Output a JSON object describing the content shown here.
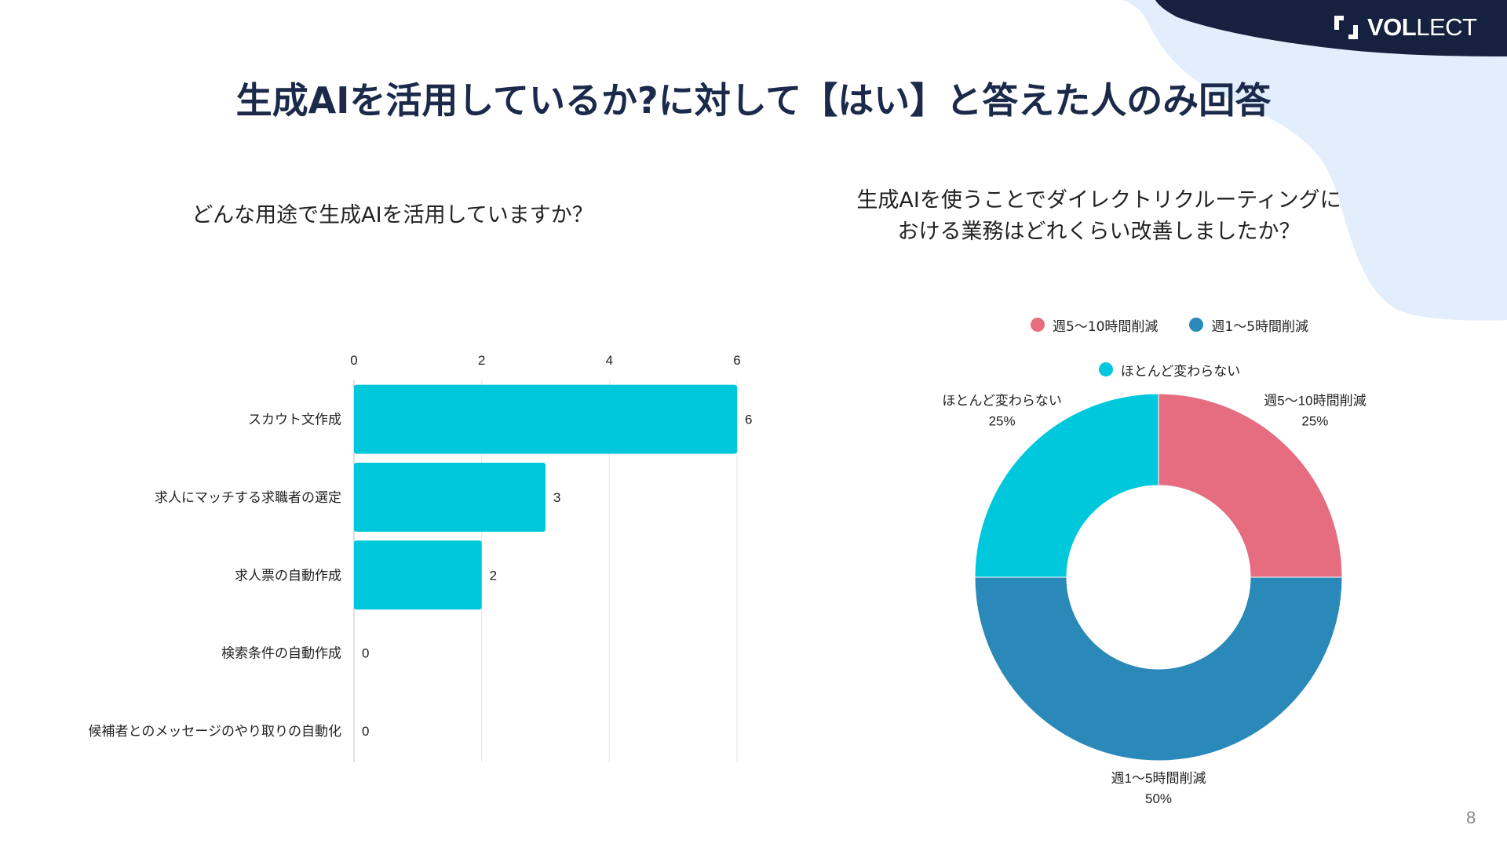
{
  "brand": {
    "logo_text_bold": "VOL",
    "logo_text_light": "LECT"
  },
  "title": "生成AIを活用しているか?に対して【はい】と答えた人のみ回答",
  "left_question": "どんな用途で生成AIを活用していますか？",
  "right_question": {
    "line1": "生成AIを使うことでダイレクトリクルーティングに",
    "line2": "おける業務はどれくらい改善しましたか？"
  },
  "page_number": "8",
  "colors": {
    "navy": "#16213f",
    "light_blue": "#e3eefd",
    "bar": "#00c8dc",
    "pink": "#e66d80",
    "blue": "#2b89b9",
    "cyan": "#00c8dc"
  },
  "chart_data": [
    {
      "type": "bar",
      "orientation": "horizontal",
      "categories": [
        "スカウト文作成",
        "求人にマッチする求職者の選定",
        "求人票の自動作成",
        "検索条件の自動作成",
        "候補者とのメッセージのやり取りの自動化"
      ],
      "values": [
        6,
        3,
        2,
        0,
        0
      ],
      "data_labels": [
        "6",
        "3",
        "2",
        "0",
        "0"
      ],
      "xlim": [
        0,
        6
      ],
      "ticks": [
        "0",
        "2",
        "4",
        "6"
      ],
      "tick_values": [
        0,
        2,
        4,
        6
      ],
      "axis_position": "top",
      "grid": true
    },
    {
      "type": "pie",
      "donut": true,
      "labels": [
        "週5～10時間削減",
        "週1～5時間削減",
        "ほとんど変わらない"
      ],
      "values": [
        25,
        50,
        25
      ],
      "percent_labels": [
        "25%",
        "50%",
        "25%"
      ],
      "legend": "top"
    }
  ]
}
